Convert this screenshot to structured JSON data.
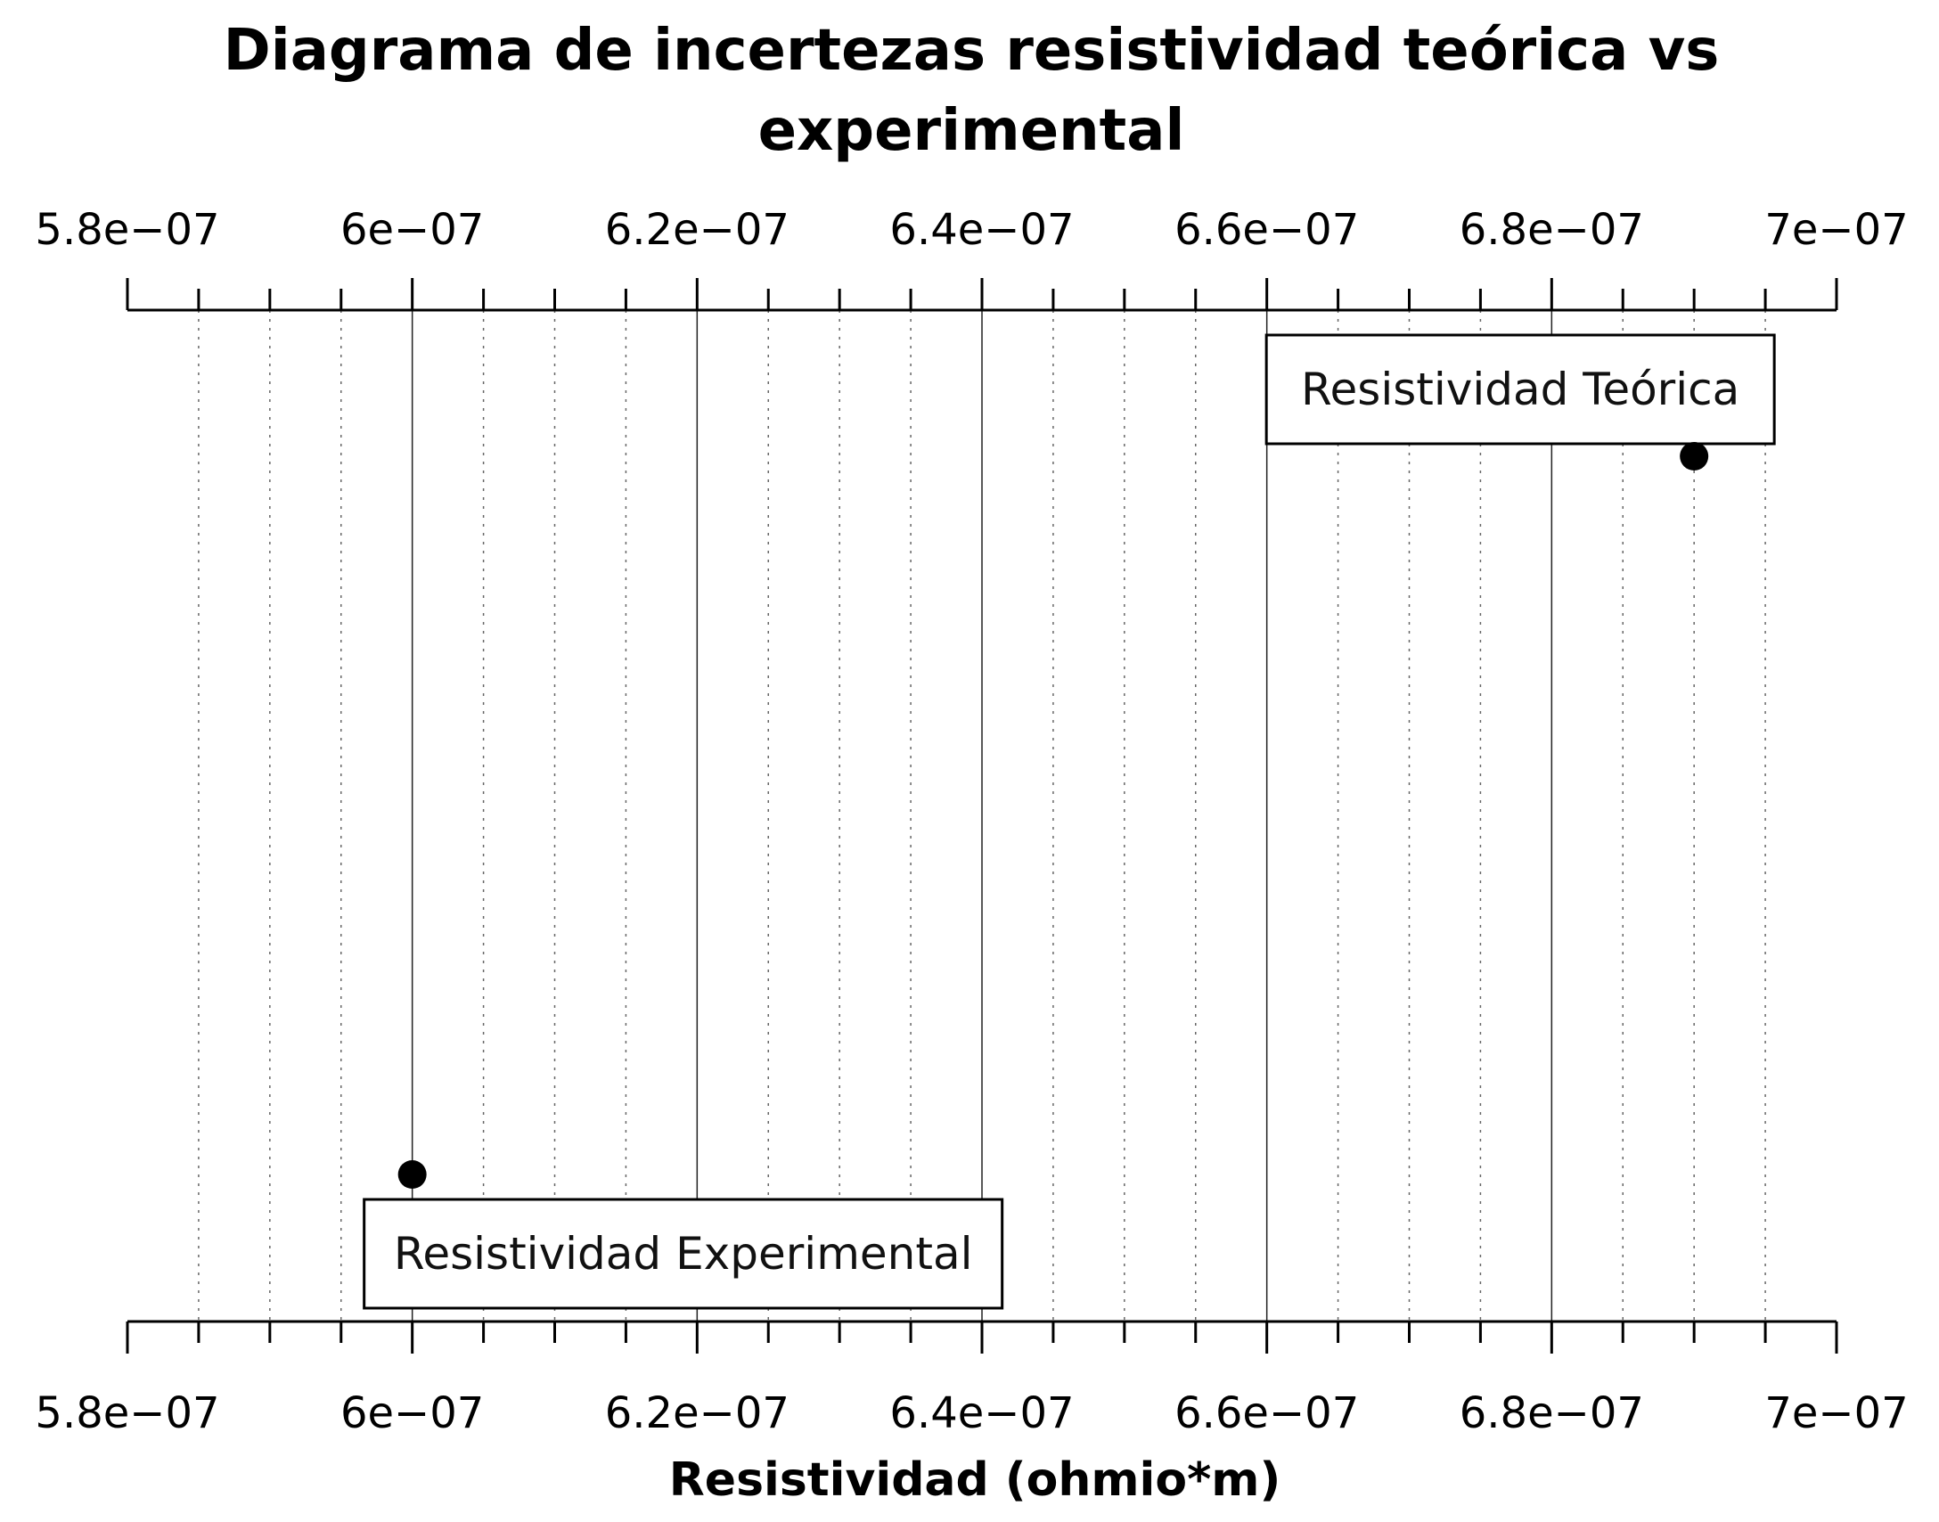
{
  "chart_data": {
    "type": "scatter",
    "title_line1": "Diagrama de incertezas resistividad teórica vs",
    "title_line2": "experimental",
    "xlabel": "Resistividad (ohmio*m)",
    "xlim": [
      5.8e-07,
      7e-07
    ],
    "major_ticks": [
      5.8e-07,
      6e-07,
      6.2e-07,
      6.4e-07,
      6.6e-07,
      6.8e-07,
      7e-07
    ],
    "tick_labels": [
      "5.8e−07",
      "6e−07",
      "6.2e−07",
      "6.4e−07",
      "6.6e−07",
      "6.8e−07",
      "7e−07"
    ],
    "minor_ticks_per_interval": 4,
    "grid": true,
    "points": [
      {
        "x": 6e-07,
        "row": "bottom",
        "label": "Resistividad Experimental"
      },
      {
        "x": 6.9e-07,
        "row": "top",
        "label": "Resistividad Teórica"
      }
    ]
  }
}
